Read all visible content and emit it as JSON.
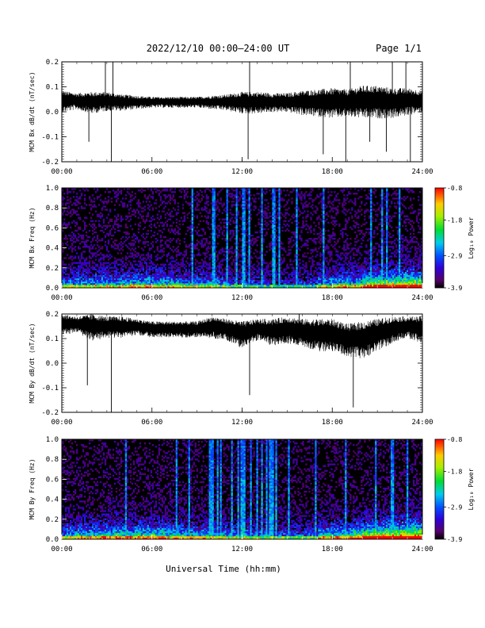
{
  "header": {
    "title": "2022/12/10  00:00–24:00 UT",
    "page": "Page 1/1"
  },
  "footer": {
    "xlabel": "Universal Time (hh:mm)"
  },
  "chart_data": [
    {
      "type": "line",
      "ylabel": "MCM Bx dB/dt (nT/sec)",
      "xlim": [
        0,
        24
      ],
      "ylim": [
        -0.2,
        0.2
      ],
      "xticks": [
        "00:00",
        "06:00",
        "12:00",
        "18:00",
        "24:00"
      ],
      "yticks": [
        "-0.2",
        "-0.1",
        "0.0",
        "0.1",
        "0.2"
      ],
      "envelope": {
        "x_hours": [
          0,
          1,
          2,
          3,
          4,
          5,
          6,
          7,
          8,
          9,
          10,
          11,
          12,
          13,
          14,
          15,
          16,
          17,
          18,
          19,
          20,
          21,
          22,
          23,
          24
        ],
        "center": [
          0.045,
          0.045,
          0.04,
          0.045,
          0.04,
          0.04,
          0.04,
          0.04,
          0.04,
          0.04,
          0.04,
          0.04,
          0.04,
          0.04,
          0.04,
          0.04,
          0.04,
          0.04,
          0.04,
          0.04,
          0.045,
          0.045,
          0.04,
          0.045,
          0.045
        ],
        "amplitude": [
          0.04,
          0.03,
          0.04,
          0.035,
          0.03,
          0.025,
          0.02,
          0.02,
          0.02,
          0.02,
          0.025,
          0.03,
          0.04,
          0.04,
          0.035,
          0.035,
          0.045,
          0.05,
          0.055,
          0.05,
          0.06,
          0.06,
          0.055,
          0.05,
          0.04
        ]
      },
      "spikes": [
        [
          1.8,
          -0.12
        ],
        [
          2.9,
          0.2
        ],
        [
          3.3,
          -0.2
        ],
        [
          3.4,
          0.2
        ],
        [
          12.4,
          -0.19
        ],
        [
          12.5,
          0.2
        ],
        [
          17.4,
          -0.17
        ],
        [
          18.9,
          -0.2
        ],
        [
          19.2,
          0.2
        ],
        [
          20.5,
          -0.12
        ],
        [
          21.6,
          -0.16
        ],
        [
          22.0,
          0.2
        ],
        [
          22.9,
          0.2
        ],
        [
          23.2,
          -0.2
        ]
      ]
    },
    {
      "type": "heatmap",
      "ylabel": "MCM Bx Freq (Hz)",
      "xlim": [
        0,
        24
      ],
      "ylim": [
        0,
        1.0
      ],
      "xticks": [
        "00:00",
        "06:00",
        "12:00",
        "18:00",
        "24:00"
      ],
      "yticks": [
        "0.0",
        "0.2",
        "0.4",
        "0.6",
        "0.8",
        "1.0"
      ],
      "colorbar": {
        "label": "Log₁₀ Power",
        "min": -3.9,
        "max": -0.8,
        "ticks": [
          "-0.8",
          "-1.8",
          "-2.9",
          "-3.9"
        ]
      },
      "bursts_hours": [
        8.7,
        10.1,
        11.0,
        11.6,
        12.1,
        12.45,
        13.3,
        14.1,
        14.5,
        15.6,
        17.4,
        20.6,
        21.3,
        21.6,
        22.5
      ]
    },
    {
      "type": "line",
      "ylabel": "MCM By dB/dt (nT/sec)",
      "xlim": [
        0,
        24
      ],
      "ylim": [
        -0.2,
        0.2
      ],
      "xticks": [
        "00:00",
        "06:00",
        "12:00",
        "18:00",
        "24:00"
      ],
      "yticks": [
        "-0.2",
        "-0.1",
        "0.0",
        "0.1",
        "0.2"
      ],
      "envelope": {
        "x_hours": [
          0,
          1,
          2,
          3,
          4,
          5,
          6,
          7,
          8,
          9,
          10,
          11,
          12,
          13,
          14,
          15,
          16,
          17,
          18,
          19,
          20,
          21,
          22,
          23,
          24
        ],
        "center": [
          0.16,
          0.16,
          0.15,
          0.15,
          0.15,
          0.15,
          0.14,
          0.14,
          0.14,
          0.14,
          0.15,
          0.14,
          0.12,
          0.14,
          0.13,
          0.14,
          0.13,
          0.12,
          0.12,
          0.1,
          0.1,
          0.12,
          0.14,
          0.15,
          0.14
        ],
        "amplitude": [
          0.04,
          0.03,
          0.05,
          0.04,
          0.04,
          0.03,
          0.03,
          0.03,
          0.03,
          0.03,
          0.04,
          0.04,
          0.05,
          0.04,
          0.05,
          0.05,
          0.05,
          0.06,
          0.06,
          0.06,
          0.07,
          0.06,
          0.05,
          0.04,
          0.05
        ]
      },
      "spikes": [
        [
          1.7,
          -0.09
        ],
        [
          3.3,
          -0.2
        ],
        [
          12.5,
          -0.13
        ],
        [
          15.8,
          0.2
        ],
        [
          19.4,
          -0.18
        ]
      ]
    },
    {
      "type": "heatmap",
      "ylabel": "MCM By Freq (Hz)",
      "xlim": [
        0,
        24
      ],
      "ylim": [
        0,
        1.0
      ],
      "xticks": [
        "00:00",
        "06:00",
        "12:00",
        "18:00",
        "24:00"
      ],
      "yticks": [
        "0.0",
        "0.2",
        "0.4",
        "0.6",
        "0.8",
        "1.0"
      ],
      "colorbar": {
        "label": "Log₁₀ Power",
        "min": -3.9,
        "max": -0.8,
        "ticks": [
          "-0.8",
          "-1.8",
          "-2.9",
          "-3.9"
        ]
      },
      "bursts_hours": [
        4.3,
        7.6,
        8.5,
        9.8,
        10.0,
        10.4,
        10.6,
        11.3,
        11.7,
        12.0,
        12.2,
        12.6,
        13.0,
        13.3,
        13.6,
        13.9,
        14.0,
        14.3,
        15.1,
        16.9,
        18.9,
        20.9,
        22.0,
        23.0
      ]
    }
  ]
}
